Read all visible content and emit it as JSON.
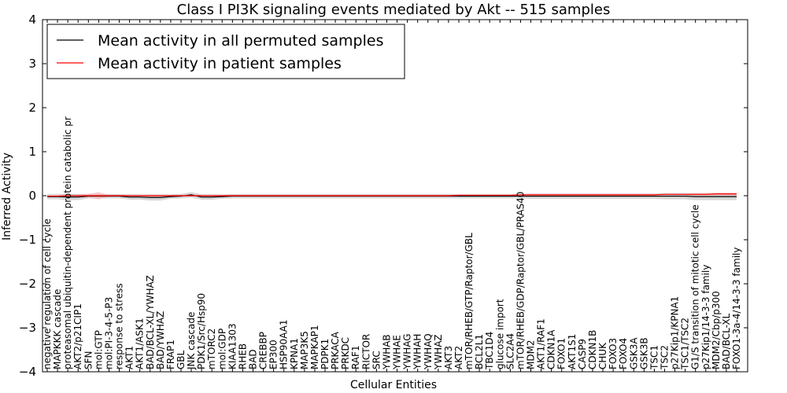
{
  "chart_data": {
    "type": "line",
    "title": "Class I PI3K signaling events mediated by Akt -- 515 samples",
    "xlabel": "Cellular Entities",
    "ylabel": "Inferred Activity",
    "ylim": [
      -4,
      4
    ],
    "yticks": [
      -4,
      -3,
      -2,
      -1,
      0,
      1,
      2,
      3,
      4
    ],
    "ytick_labels": [
      "−4",
      "−3",
      "−2",
      "−1",
      "0",
      "1",
      "2",
      "3",
      "4"
    ],
    "grid": false,
    "legend_position": "top-left",
    "categories": [
      "negative regulation of cell cycle",
      "MAPKKK cascade",
      "proteasomal ubiquitin-dependent protein catabolic pr",
      "AKT2/p21CIP1",
      "SFN",
      "mol:GTP",
      "mol:PI-3-4-5-P3",
      "response to stress",
      "AKT1",
      "AKT1/ASK1",
      "BAD/BCL-XL/YWHAZ",
      "BAD/YWHAZ",
      "FRAP1",
      "GBL",
      "JNK cascade",
      "PDK1/Src/Hsp90",
      "mTORC2",
      "mol:GDP",
      "KIAA1303",
      "RHEB",
      "BAD",
      "CREBBP",
      "EP300",
      "HSP90AA1",
      "KPNA1",
      "MAP3K5",
      "MAPKAP1",
      "PDPK1",
      "PRKACA",
      "PRKDC",
      "RAF1",
      "RICTOR",
      "SRC",
      "YWHAB",
      "YWHAE",
      "YWHAG",
      "YWHAH",
      "YWHAQ",
      "YWHAZ",
      "AKT3",
      "AKT2",
      "mTOR/RHEB/GTP/Raptor/GBL",
      "BCL2L1",
      "TBC1D4",
      "glucose import",
      "SLC2A4",
      "mTOR/RHEB/GDP/Raptor/GBL/PRAS40",
      "MDM2",
      "AKT1/RAF1",
      "CDKN1A",
      "FOXO1",
      "AKT1S1",
      "CASP9",
      "CDKN1B",
      "CHUK",
      "FOXO3",
      "FOXO4",
      "GSK3A",
      "GSK3B",
      "TSC1",
      "TSC2",
      "p27Kip1/KPNA1",
      "TSC1/TSC2",
      "G1/S transition of mitotic cell cycle",
      "p27Kip1/14-3-3 family",
      "MDM2/Cbp/p300",
      "BAD/BCL-XL",
      "FOXO1-3a-4/14-3-3 family"
    ],
    "series": [
      {
        "name": "Mean activity in all permuted samples",
        "color": "#000000",
        "band_color": "#c8c8c8",
        "values": [
          -0.02,
          -0.02,
          -0.03,
          -0.03,
          -0.01,
          -0.01,
          -0.01,
          -0.01,
          -0.03,
          -0.03,
          -0.04,
          -0.04,
          -0.02,
          -0.01,
          0.02,
          -0.03,
          -0.03,
          -0.02,
          -0.01,
          -0.01,
          -0.01,
          -0.01,
          -0.01,
          -0.01,
          -0.01,
          -0.01,
          -0.01,
          -0.01,
          -0.01,
          -0.01,
          -0.01,
          -0.01,
          -0.01,
          -0.01,
          -0.01,
          -0.01,
          -0.01,
          -0.01,
          -0.01,
          -0.01,
          -0.01,
          -0.01,
          -0.01,
          -0.01,
          -0.01,
          -0.01,
          -0.01,
          -0.01,
          -0.01,
          -0.01,
          -0.01,
          -0.01,
          -0.01,
          -0.01,
          -0.01,
          -0.01,
          -0.01,
          -0.01,
          -0.01,
          -0.01,
          -0.01,
          -0.01,
          -0.01,
          -0.02,
          -0.02,
          -0.02,
          -0.02,
          -0.02
        ],
        "band_halfwidth": [
          0.06,
          0.06,
          0.07,
          0.07,
          0.05,
          0.05,
          0.05,
          0.05,
          0.06,
          0.06,
          0.07,
          0.07,
          0.05,
          0.05,
          0.06,
          0.06,
          0.06,
          0.05,
          0.05,
          0.05,
          0.05,
          0.05,
          0.05,
          0.05,
          0.05,
          0.05,
          0.05,
          0.05,
          0.05,
          0.05,
          0.05,
          0.05,
          0.05,
          0.05,
          0.05,
          0.05,
          0.05,
          0.05,
          0.05,
          0.05,
          0.05,
          0.05,
          0.05,
          0.05,
          0.05,
          0.05,
          0.05,
          0.06,
          0.06,
          0.06,
          0.06,
          0.06,
          0.06,
          0.06,
          0.06,
          0.06,
          0.06,
          0.06,
          0.06,
          0.06,
          0.07,
          0.07,
          0.07,
          0.08,
          0.08,
          0.08,
          0.08,
          0.08
        ]
      },
      {
        "name": "Mean activity in patient samples",
        "color": "#ff0000",
        "band_color": "#f4aaaa",
        "values": [
          -0.01,
          -0.01,
          0.0,
          0.0,
          0.0,
          0.0,
          0.0,
          0.0,
          0.0,
          0.0,
          0.0,
          0.0,
          0.0,
          0.0,
          0.0,
          0.0,
          0.0,
          0.0,
          0.0,
          0.0,
          0.0,
          0.0,
          0.0,
          0.0,
          0.0,
          0.0,
          0.0,
          0.0,
          0.0,
          0.0,
          0.0,
          0.0,
          0.0,
          0.0,
          0.0,
          0.0,
          0.0,
          0.0,
          0.0,
          0.0,
          0.01,
          0.01,
          0.01,
          0.01,
          0.01,
          0.01,
          0.02,
          0.02,
          0.02,
          0.02,
          0.02,
          0.02,
          0.02,
          0.02,
          0.02,
          0.02,
          0.02,
          0.02,
          0.02,
          0.02,
          0.03,
          0.03,
          0.03,
          0.03,
          0.03,
          0.04,
          0.04,
          0.04
        ],
        "band_halfwidth": [
          0.02,
          0.02,
          0.03,
          0.03,
          0.04,
          0.08,
          0.02,
          0.02,
          0.02,
          0.02,
          0.02,
          0.02,
          0.02,
          0.02,
          0.02,
          0.02,
          0.02,
          0.02,
          0.02,
          0.02,
          0.02,
          0.02,
          0.02,
          0.02,
          0.02,
          0.02,
          0.02,
          0.02,
          0.02,
          0.02,
          0.02,
          0.02,
          0.02,
          0.02,
          0.02,
          0.02,
          0.02,
          0.02,
          0.02,
          0.02,
          0.02,
          0.02,
          0.02,
          0.02,
          0.02,
          0.02,
          0.02,
          0.02,
          0.02,
          0.02,
          0.02,
          0.02,
          0.02,
          0.02,
          0.02,
          0.02,
          0.02,
          0.02,
          0.02,
          0.02,
          0.02,
          0.02,
          0.02,
          0.03,
          0.03,
          0.03,
          0.03,
          0.03
        ]
      }
    ]
  }
}
